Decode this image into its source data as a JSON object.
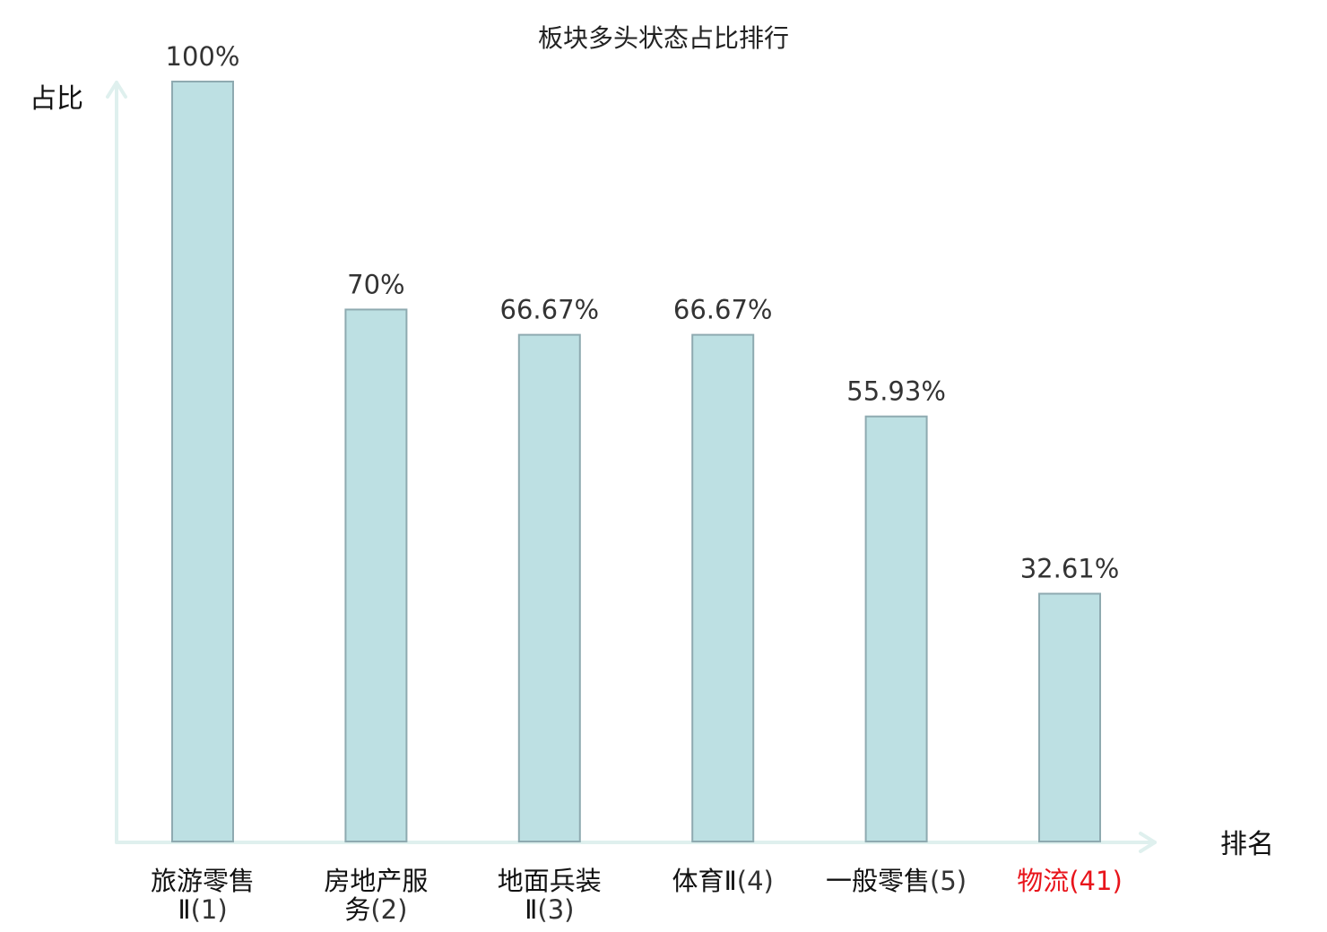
{
  "chart_data": {
    "type": "bar",
    "title": "板块多头状态占比排行",
    "ylabel": "占比",
    "xlabel": "排名",
    "ylim": [
      0,
      100
    ],
    "grid": false,
    "categories": [
      {
        "name": "旅游零售",
        "line2": "Ⅱ",
        "rank": "(1)",
        "highlight": false
      },
      {
        "name": "房地产服",
        "line2": "务",
        "rank": "(2)",
        "highlight": false
      },
      {
        "name": "地面兵装",
        "line2": "Ⅱ",
        "rank": "(3)",
        "highlight": false
      },
      {
        "name": "体育Ⅱ",
        "line2": "",
        "rank": "(4)",
        "highlight": false
      },
      {
        "name": "一般零售",
        "line2": "",
        "rank": "(5)",
        "highlight": false
      },
      {
        "name": "物流",
        "line2": "",
        "rank": "(41)",
        "highlight": true
      }
    ],
    "values": [
      100,
      70,
      66.67,
      66.67,
      55.93,
      32.61
    ],
    "value_labels": [
      "100%",
      "70%",
      "66.67%",
      "66.67%",
      "55.93%",
      "32.61%"
    ]
  },
  "colors": {
    "bar_fill": "#bde0e3",
    "bar_stroke": "#8eaab0",
    "axis": "#dff0ee",
    "name_text": "#111111",
    "rank_text": "#333333",
    "highlight_text": "#e8141b"
  }
}
